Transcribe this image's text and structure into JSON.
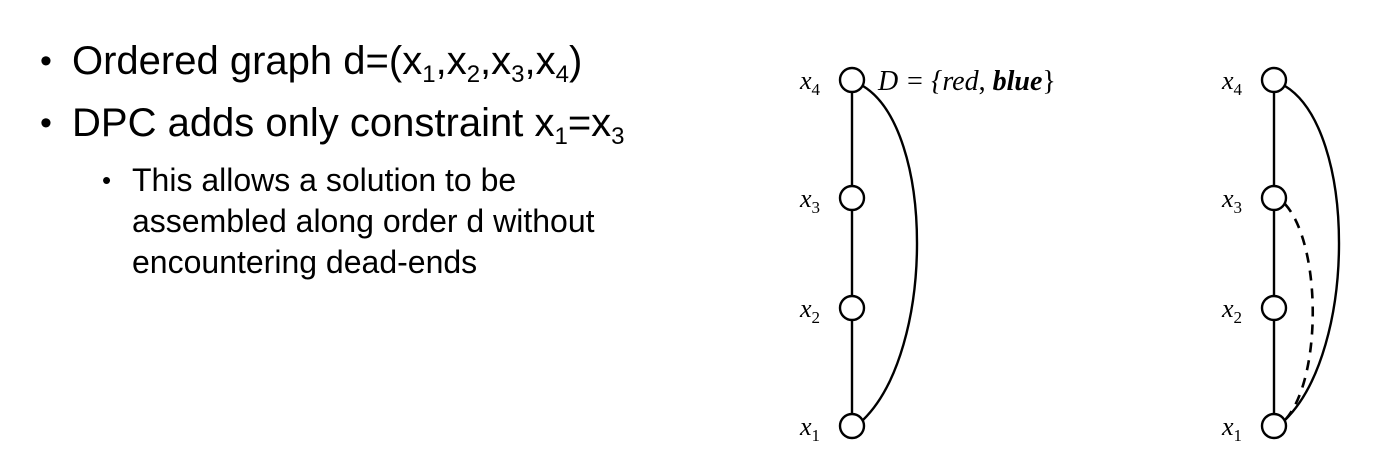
{
  "bullets": {
    "b1": {
      "prefix": "Ordered graph d=(",
      "v1": "x",
      "s1": "1",
      "sep1": ",",
      "v2": "x",
      "s2": "2",
      "sep2": ",",
      "v3": "x",
      "s3": "3",
      "sep3": ",",
      "v4": "x",
      "s4": "4",
      "suffix": ")"
    },
    "b2": {
      "prefix": "DPC adds only constraint ",
      "va": "x",
      "sa": "1",
      "eq": "=",
      "vb": "x",
      "sb": "3"
    },
    "b3": {
      "text": "This allows a solution to be assembled along order d without encountering dead-ends"
    }
  },
  "graph_left": {
    "nodes": [
      {
        "var": "x",
        "sub": "4"
      },
      {
        "var": "x",
        "sub": "3"
      },
      {
        "var": "x",
        "sub": "2"
      },
      {
        "var": "x",
        "sub": "1"
      }
    ],
    "domain_label": {
      "lhs": "D = {",
      "red": "red",
      "comma": ", ",
      "blue": "blue",
      "rhs": "}"
    },
    "edges": [
      {
        "from": "x4",
        "to": "x3",
        "style": "solid"
      },
      {
        "from": "x3",
        "to": "x2",
        "style": "solid"
      },
      {
        "from": "x2",
        "to": "x1",
        "style": "solid"
      },
      {
        "from": "x4",
        "to": "x1",
        "style": "solid"
      }
    ]
  },
  "graph_right": {
    "nodes": [
      {
        "var": "x",
        "sub": "4"
      },
      {
        "var": "x",
        "sub": "3"
      },
      {
        "var": "x",
        "sub": "2"
      },
      {
        "var": "x",
        "sub": "1"
      }
    ],
    "edges": [
      {
        "from": "x4",
        "to": "x3",
        "style": "solid"
      },
      {
        "from": "x3",
        "to": "x2",
        "style": "solid"
      },
      {
        "from": "x2",
        "to": "x1",
        "style": "solid"
      },
      {
        "from": "x4",
        "to": "x1",
        "style": "solid"
      },
      {
        "from": "x3",
        "to": "x1",
        "style": "dashed"
      }
    ]
  }
}
